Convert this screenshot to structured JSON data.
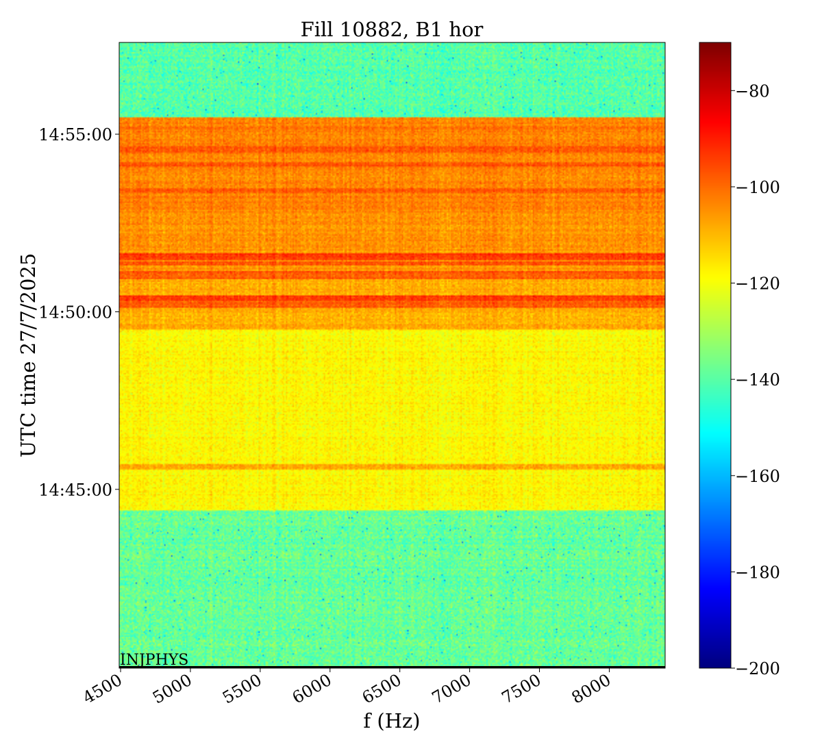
{
  "chart_data": {
    "type": "heatmap",
    "title": "Fill 10882, B1 hor",
    "xlabel": "f (Hz)",
    "ylabel": "UTC time 27/7/2025",
    "x_ticks": [
      "4500",
      "5000",
      "5500",
      "6000",
      "6500",
      "7000",
      "7500",
      "8000"
    ],
    "x_tick_values": [
      4500,
      5000,
      5500,
      6000,
      6500,
      7000,
      7500,
      8000
    ],
    "xlim": [
      4490,
      8400
    ],
    "y_ticks": [
      "14:55:00",
      "14:50:00",
      "14:45:00"
    ],
    "y_tick_values_sec": [
      900,
      600,
      300
    ],
    "ylim_sec": [
      -2,
      1055
    ],
    "colorbar": {
      "colormap": "jet",
      "range": [
        -200,
        -70
      ],
      "ticks": [
        "−80",
        "−100",
        "−120",
        "−140",
        "−160",
        "−180",
        "−200"
      ],
      "tick_values": [
        -80,
        -100,
        -120,
        -140,
        -160,
        -180,
        -200
      ]
    },
    "annotation": "INJPHYS",
    "marker_line_time_sec": 0,
    "bands": [
      {
        "from_sec": -2,
        "to_sec": 265,
        "level_db": -138
      },
      {
        "from_sec": 265,
        "to_sec": 570,
        "level_db": -118
      },
      {
        "from_sec": 570,
        "to_sec": 660,
        "level_db": -108
      },
      {
        "from_sec": 660,
        "to_sec": 768,
        "level_db": -105
      },
      {
        "from_sec": 768,
        "to_sec": 928,
        "level_db": -103
      },
      {
        "from_sec": 928,
        "to_sec": 1055,
        "level_db": -140
      }
    ],
    "stripes": [
      {
        "from_sec": 333,
        "to_sec": 343,
        "level_db": -108
      },
      {
        "from_sec": 608,
        "to_sec": 622,
        "level_db": -98
      },
      {
        "from_sec": 618,
        "to_sec": 628,
        "level_db": -94
      },
      {
        "from_sec": 656,
        "to_sec": 668,
        "level_db": -97
      },
      {
        "from_sec": 678,
        "to_sec": 686,
        "level_db": -96
      },
      {
        "from_sec": 688,
        "to_sec": 698,
        "level_db": -94
      },
      {
        "from_sec": 800,
        "to_sec": 808,
        "level_db": -98
      },
      {
        "from_sec": 845,
        "to_sec": 853,
        "level_db": -97
      },
      {
        "from_sec": 868,
        "to_sec": 880,
        "level_db": -97
      },
      {
        "from_sec": 905,
        "to_sec": 913,
        "level_db": -100
      }
    ]
  }
}
